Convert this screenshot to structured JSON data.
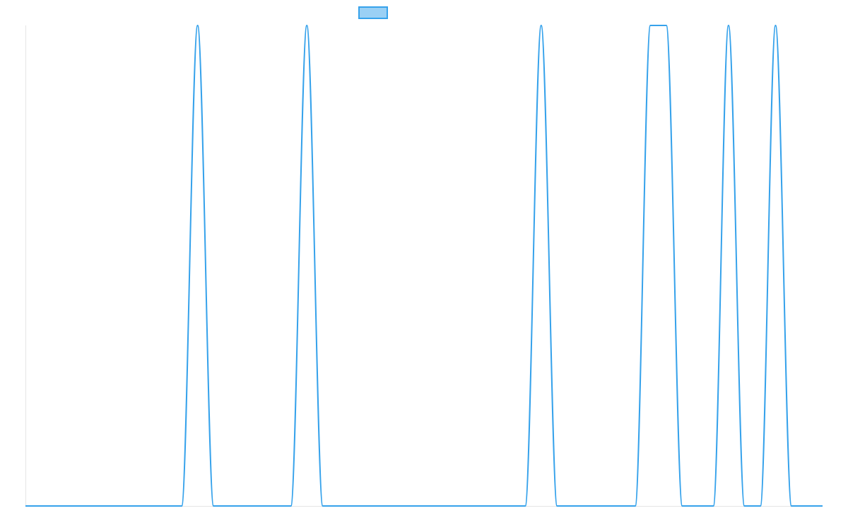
{
  "chart_data": {
    "type": "line",
    "title": "",
    "xlabel": "",
    "ylabel": "",
    "grid": false,
    "legend_position": "top-center",
    "xlim": [
      0,
      1
    ],
    "ylim": [
      0,
      1
    ],
    "line_style": "smooth",
    "series": [
      {
        "color": "#36a2eb",
        "fill_color": "#9ad0f5",
        "x": [
          0.0,
          0.196,
          0.216,
          0.236,
          0.333,
          0.353,
          0.373,
          0.627,
          0.647,
          0.667,
          0.765,
          0.784,
          0.804,
          0.824,
          0.863,
          0.882,
          0.902,
          0.922,
          0.941,
          0.961,
          1.0
        ],
        "values": [
          0,
          0,
          1,
          0,
          0,
          1,
          0,
          0,
          1,
          0,
          0,
          1,
          1,
          0,
          0,
          1,
          0,
          0,
          1,
          0,
          0
        ]
      }
    ]
  }
}
